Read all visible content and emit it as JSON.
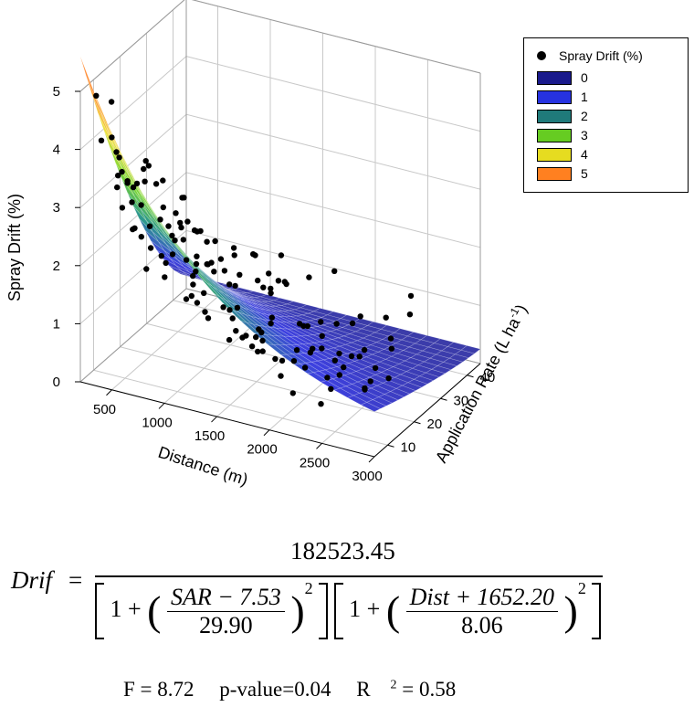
{
  "chart_data": {
    "type": "surface3d",
    "title": "",
    "xlabel": "Distance (m)",
    "ylabel": "Application Rate (L ha",
    "ylabel_sup": "-1",
    "ylabel_close": ")",
    "zlabel": "Spray Drift (%)",
    "x_ticks": [
      "500",
      "1000",
      "1500",
      "2000",
      "2500",
      "3000"
    ],
    "y_ticks": [
      "10",
      "20",
      "30",
      "40"
    ],
    "z_ticks": [
      "0",
      "1",
      "2",
      "3",
      "4",
      "5"
    ],
    "x_range": [
      200,
      3000
    ],
    "y_range": [
      5,
      45
    ],
    "z_range": [
      0,
      5
    ],
    "legend": {
      "title": "Spray Drift (%)",
      "entries": [
        {
          "label": "0",
          "color": "#1a1a8c"
        },
        {
          "label": "1",
          "color": "#2632e0"
        },
        {
          "label": "2",
          "color": "#1f7a7a"
        },
        {
          "label": "3",
          "color": "#66cc22"
        },
        {
          "label": "4",
          "color": "#e6dc20"
        },
        {
          "label": "5",
          "color": "#ff8020"
        }
      ]
    },
    "colors": {
      "surface_stops": [
        "#3a3a96",
        "#3d40e0",
        "#2e9a8a",
        "#7ad632",
        "#f0e040",
        "#ff8a30"
      ],
      "points": "#000000",
      "grid": "#c8c8c8"
    }
  },
  "equation": {
    "lhs": "Drif",
    "equals": "=",
    "numerator": "182523.45",
    "one_a": "1 +",
    "sar_num": "SAR − 7.53",
    "sar_den": "29.90",
    "one_b": "1 +",
    "dist_num": "Dist + 1652.20",
    "dist_den": "8.06",
    "power": "2"
  },
  "stats": {
    "f": "F = 8.72",
    "p": "p-value=0.04",
    "r2_label": "R",
    "r2_sup": "2",
    "r2_value": " = 0.58"
  }
}
